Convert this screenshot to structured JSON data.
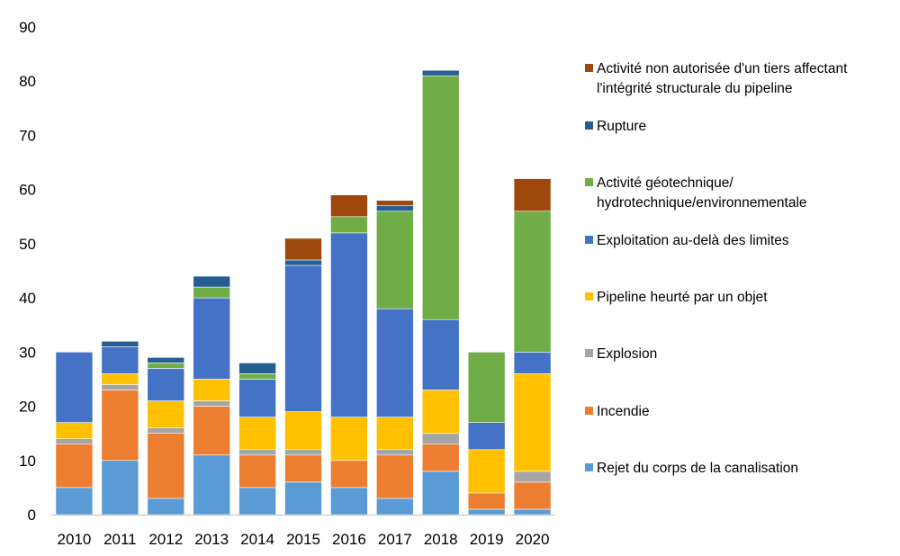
{
  "chart_data": {
    "type": "bar",
    "stacked": true,
    "title": "",
    "xlabel": "",
    "ylabel": "",
    "ylim": [
      0,
      90
    ],
    "yticks": [
      0,
      10,
      20,
      30,
      40,
      50,
      60,
      70,
      80,
      90
    ],
    "grid": false,
    "legend_position": "right",
    "categories": [
      "2010",
      "2011",
      "2012",
      "2013",
      "2014",
      "2015",
      "2016",
      "2017",
      "2018",
      "2019",
      "2020"
    ],
    "series": [
      {
        "name": "Rejet du corps de la canalisation",
        "color": "#5b9bd5",
        "values": [
          5,
          10,
          3,
          11,
          5,
          6,
          5,
          3,
          8,
          1,
          1
        ]
      },
      {
        "name": "Incendie",
        "color": "#ed7d31",
        "values": [
          8,
          13,
          12,
          9,
          6,
          5,
          5,
          8,
          5,
          3,
          5
        ]
      },
      {
        "name": "Explosion",
        "color": "#a5a5a5",
        "values": [
          1,
          1,
          1,
          1,
          1,
          1,
          0,
          1,
          2,
          0,
          2
        ]
      },
      {
        "name": "Pipeline heurté par un objet",
        "color": "#ffc000",
        "values": [
          3,
          2,
          5,
          4,
          6,
          7,
          8,
          6,
          8,
          8,
          18
        ]
      },
      {
        "name": "Exploitation au-delà des limites",
        "color": "#4472c4",
        "values": [
          13,
          5,
          6,
          15,
          7,
          27,
          34,
          20,
          13,
          5,
          4
        ]
      },
      {
        "name": "Activité géotechnique/ hydrotechnique/environnementale",
        "color": "#70ad47",
        "lines": [
          "Activité géotechnique/",
          "hydrotechnique/environnementale"
        ],
        "values": [
          0,
          0,
          1,
          2,
          1,
          0,
          3,
          18,
          45,
          13,
          26
        ]
      },
      {
        "name": "Rupture",
        "color": "#255e91",
        "values": [
          0,
          1,
          1,
          2,
          2,
          1,
          0,
          1,
          1,
          0,
          0
        ]
      },
      {
        "name": "Activité non autorisée d'un tiers affectant l'intégrité structurale du pipeline",
        "color": "#9e480e",
        "lines": [
          "Activité non autorisée d'un tiers affectant",
          "l'intégrité structurale du pipeline"
        ],
        "values": [
          0,
          0,
          0,
          0,
          0,
          4,
          4,
          1,
          0,
          0,
          6
        ]
      }
    ]
  }
}
